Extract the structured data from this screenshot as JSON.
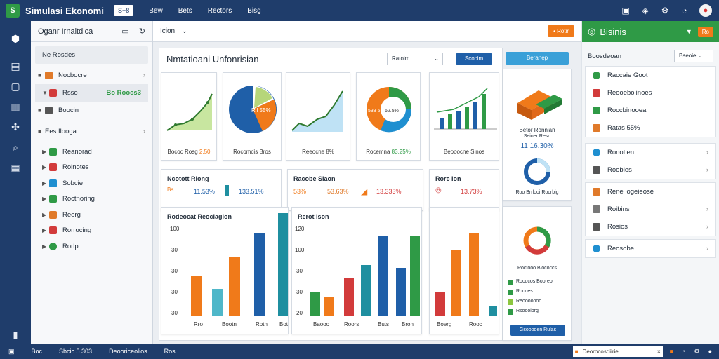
{
  "topbar": {
    "logo": "S",
    "title": "Simulasi Ekonomi",
    "chip": "S+8",
    "menus": [
      "Bew",
      "Bets",
      "Rectors",
      "Bisg"
    ],
    "icons": [
      "grid-icon",
      "compass-icon",
      "settings-icon",
      "bell-icon",
      "user-avatar"
    ]
  },
  "rail": {
    "icons": [
      "cube-icon",
      "layers-icon",
      "clipboard-icon",
      "document-icon",
      "puzzle-icon",
      "search-icon",
      "grid-icon"
    ],
    "bottom_icon": "trash-icon"
  },
  "sidebar": {
    "title": "Oganr Irnaltdica",
    "group1": "Ne Rosdes",
    "items": [
      {
        "label": "Nocbocre",
        "color": "#e07a2a"
      },
      {
        "label": "Rsso",
        "color": "#d23b3b",
        "value": "Bo Roocs3"
      },
      {
        "label": "Boocin",
        "color": "#555555"
      }
    ],
    "group2": "Ees Ilooga",
    "subitems": [
      {
        "label": "Reanorad",
        "color": "#2f9a46"
      },
      {
        "label": "Rolnotes",
        "color": "#d23b3b"
      },
      {
        "label": "Sobcie",
        "color": "#1f8fd0"
      },
      {
        "label": "Roctnoring",
        "color": "#2f9a46"
      },
      {
        "label": "Reerg",
        "color": "#e07a2a"
      },
      {
        "label": "Rorrocing",
        "color": "#d23b3b"
      },
      {
        "label": "Rorlp",
        "color": "#2f9a46"
      }
    ]
  },
  "main": {
    "tab": "Icion",
    "action_button": "• Rotir",
    "dashboard_title": "Nmtatioani Unfonrisian",
    "select_placeholder": "Ratoim",
    "run_button": "Scocim",
    "cards": [
      {
        "caption": "Bococ Rosg",
        "value": "2.50"
      },
      {
        "caption": "Rocomcis Bros",
        "value": ""
      },
      {
        "caption": "Reeocne 8%",
        "value": ""
      },
      {
        "caption": "Rocemna",
        "value": "83.25%"
      },
      {
        "caption": "Beooocne Sinos",
        "value": ""
      }
    ],
    "pie_labels": [
      "Ril 55%",
      "533 53%",
      "62.5%"
    ],
    "stats": [
      {
        "title": "Ncotott Riong",
        "left": "Bs",
        "mid": "11.53%",
        "right": "133.51%"
      },
      {
        "title": "Racobe Slaon",
        "left": "53%",
        "mid": "53.63%",
        "right": "13.333%"
      },
      {
        "title": "Rorc Ion",
        "left": "",
        "mid": "13.73%",
        "right": ""
      }
    ],
    "bars_title_1": "Rodeocat Reoclagion",
    "bars_title_2": "Rerot Ison",
    "y_ticks_1": [
      "100",
      "30",
      "30",
      "30",
      "30"
    ],
    "y_ticks_2": [
      "120",
      "100",
      "30",
      "30",
      "20"
    ],
    "x_labels_1": [
      "Rro",
      "Bootn",
      "Rotn",
      "Bot"
    ],
    "x_labels_2": [
      "Baooo",
      "Roors",
      "Buts",
      "Bron"
    ],
    "x_labels_3": [
      "Boerg",
      "Rooc"
    ],
    "right_panel": {
      "button": "Beranep",
      "title": "Betor Ronnian",
      "subtitle": "Seiner Reso",
      "value": "11 16.30%",
      "donut_caption": "Roo Brrlooi Rocrbig",
      "donut2_caption": "Roctooo Biococcs",
      "legend": [
        "Rococos Booreo",
        "Rocoes",
        "Reooooooo",
        "Rsoooiorg"
      ],
      "footer_button": "Gsoooden Rulas"
    }
  },
  "right": {
    "title": "Bisinis",
    "button": "Ro",
    "sub_label": "Boosdeoan",
    "sub_select": "Bseoie",
    "block1": [
      {
        "label": "Raccaie Goot",
        "color": "#2f9a46"
      },
      {
        "label": "Reooeboiinoes",
        "color": "#d23b3b"
      },
      {
        "label": "Roccbinooea",
        "color": "#2f9a46"
      },
      {
        "label": "Ratas 55%",
        "color": "#e07a2a"
      }
    ],
    "block2": [
      {
        "label": "Ronotien",
        "color": "#1f8fd0"
      },
      {
        "label": "Roobies",
        "color": "#555555"
      }
    ],
    "block3": [
      {
        "label": "Rene logeieose",
        "color": "#e07a2a"
      },
      {
        "label": "Roibins",
        "color": "#555555"
      },
      {
        "label": "Rosios",
        "color": "#555555"
      }
    ],
    "block4": [
      {
        "label": "Reosobe",
        "color": "#1f8fd0"
      }
    ]
  },
  "bottombar": {
    "items": [
      "Boc",
      "Sbcic 5.303",
      "Deooriceolios",
      "Ros"
    ],
    "search": "Deorocosdiirie",
    "icons": [
      "warning-icon",
      "bell-icon",
      "settings-icon",
      "user-icon"
    ]
  },
  "colors": {
    "nav": "#1f3d6b",
    "green": "#2f9a46",
    "orange": "#f07a1a",
    "blue": "#1f5fa8",
    "teal": "#1f8fa0",
    "red": "#d23b3b"
  }
}
